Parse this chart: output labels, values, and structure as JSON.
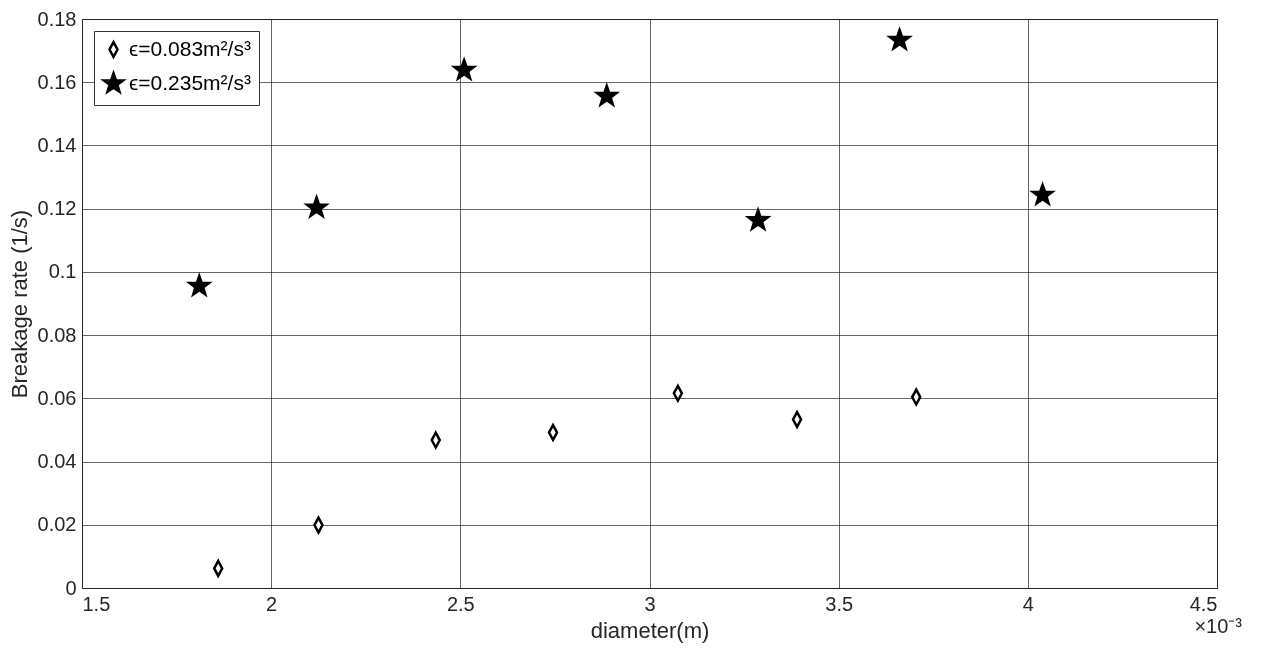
{
  "chart_data": {
    "type": "scatter",
    "xlabel": "diameter(m)",
    "ylabel": "Breakage rate (1/s)",
    "annotations": [
      "×10⁻³"
    ],
    "xlim": [
      1.5,
      4.5
    ],
    "xticks": [
      1.5,
      2,
      2.5,
      3,
      3.5,
      4,
      4.5
    ],
    "ylim": [
      0,
      0.18
    ],
    "yticks": [
      0,
      0.02,
      0.04,
      0.06,
      0.08,
      0.1,
      0.12,
      0.14,
      0.16,
      0.18
    ],
    "grid": true,
    "legend": "top left",
    "series": [
      {
        "name": "ϵ=0.083m²/s³",
        "color": "#000000",
        "marker": "diamond",
        "x": [
          1.86,
          2.125,
          2.435,
          2.745,
          3.075,
          3.39,
          3.705
        ],
        "values": [
          0.0062,
          0.0199,
          0.0468,
          0.0492,
          0.0616,
          0.0533,
          0.0604
        ]
      },
      {
        "name": "ϵ=0.235m²/s³",
        "color": "#000000",
        "marker": "star",
        "x": [
          1.81,
          2.12,
          2.51,
          2.887,
          3.287,
          3.661,
          4.039
        ],
        "values": [
          0.0955,
          0.1203,
          0.1638,
          0.1556,
          0.1163,
          0.1733,
          0.1243
        ]
      }
    ]
  }
}
